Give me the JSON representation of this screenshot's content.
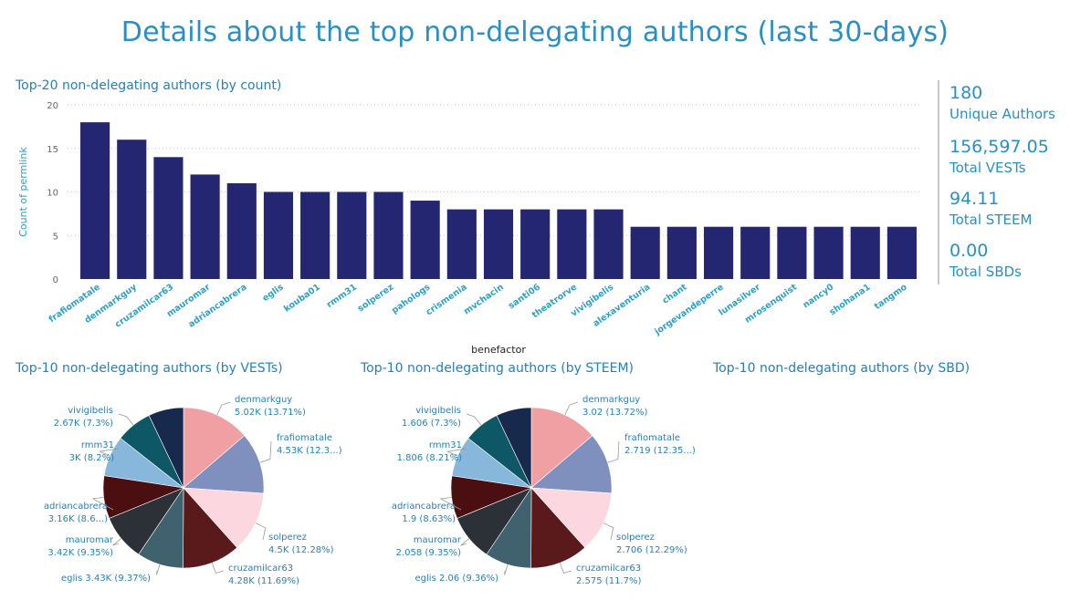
{
  "page_title": "Details about the top non-delegating authors (last 30-days)",
  "colors": {
    "title": "#2a8fc4",
    "bar": "#252672",
    "axis_label": "#2aa0c8"
  },
  "kpis": [
    {
      "value": "180",
      "label": "Unique Authors"
    },
    {
      "value": "156,597.05",
      "label": "Total VESTs"
    },
    {
      "value": "94.11",
      "label": "Total STEEM"
    },
    {
      "value": "0.00",
      "label": "Total SBDs"
    }
  ],
  "panels": {
    "vests_title": "Top-10 non-delegating authors (by VESTs)",
    "steem_title": "Top-10 non-delegating authors (by STEEM)",
    "sbd_title": "Top-10 non-delegating authors (by SBD)"
  },
  "chart_data": [
    {
      "type": "bar",
      "title": "Top-20 non-delegating authors (by count)",
      "xlabel": "benefactor",
      "ylabel": "Count of permlink",
      "ylim": [
        0,
        20
      ],
      "yticks": [
        0,
        5,
        10,
        15,
        20
      ],
      "grid": true,
      "categories": [
        "frafiomatale",
        "denmarkguy",
        "cruzamilcar63",
        "mauromar",
        "adriancabrera",
        "eglis",
        "kouba01",
        "rmm31",
        "solperez",
        "pahologs",
        "crismenia",
        "mvchacin",
        "santi06",
        "theatrorve",
        "vivigibelis",
        "alexaventuria",
        "chant",
        "jorgevandeperre",
        "lunasilver",
        "mrosenquist",
        "nancy0",
        "shohana1",
        "tangmo"
      ],
      "values": [
        18,
        16,
        14,
        12,
        11,
        10,
        10,
        10,
        10,
        9,
        8,
        8,
        8,
        8,
        8,
        6,
        6,
        6,
        6,
        6,
        6,
        6,
        6
      ]
    },
    {
      "type": "pie",
      "title": "Top-10 non-delegating authors (by VESTs)",
      "slices": [
        {
          "name": "denmarkguy",
          "value": 5.02,
          "label": "5.02K (13.71%)",
          "color": "#f0a0a2"
        },
        {
          "name": "frafiomatale",
          "value": 4.53,
          "label": "4.53K (12.3...)",
          "color": "#7f8fbe"
        },
        {
          "name": "solperez",
          "value": 4.5,
          "label": "4.5K (12.28%)",
          "color": "#fdd7e0"
        },
        {
          "name": "cruzamilcar63",
          "value": 4.28,
          "label": "4.28K (11.69%)",
          "color": "#5a1a1c"
        },
        {
          "name": "eglis",
          "value": 3.43,
          "label": "eglis 3.43K (9.37%)",
          "color": "#3f626e"
        },
        {
          "name": "mauromar",
          "value": 3.42,
          "label": "3.42K (9.35%)",
          "color": "#2b3136"
        },
        {
          "name": "adriancabrera",
          "value": 3.16,
          "label": "3.16K (8.6...)",
          "color": "#4b0f11"
        },
        {
          "name": "rmm31",
          "value": 3.0,
          "label": "3K (8.2%)",
          "color": "#87b8dc"
        },
        {
          "name": "vivigibelis",
          "value": 2.67,
          "label": "2.67K (7.3%)",
          "color": "#0d5766"
        },
        {
          "name": "",
          "value": 2.59,
          "label": "",
          "color": "#172a4e"
        }
      ]
    },
    {
      "type": "pie",
      "title": "Top-10 non-delegating authors (by STEEM)",
      "slices": [
        {
          "name": "denmarkguy",
          "value": 3.02,
          "label": "3.02 (13.72%)",
          "color": "#f0a0a2"
        },
        {
          "name": "frafiomatale",
          "value": 2.719,
          "label": "2.719 (12.35...)",
          "color": "#7f8fbe"
        },
        {
          "name": "solperez",
          "value": 2.706,
          "label": "2.706 (12.29%)",
          "color": "#fdd7e0"
        },
        {
          "name": "cruzamilcar63",
          "value": 2.575,
          "label": "2.575 (11.7%)",
          "color": "#5a1a1c"
        },
        {
          "name": "eglis",
          "value": 2.06,
          "label": "eglis 2.06 (9.36%)",
          "color": "#3f626e"
        },
        {
          "name": "mauromar",
          "value": 2.058,
          "label": "2.058 (9.35%)",
          "color": "#2b3136"
        },
        {
          "name": "adriancabrera",
          "value": 1.9,
          "label": "1.9 (8.63%)",
          "color": "#4b0f11"
        },
        {
          "name": "rmm31",
          "value": 1.806,
          "label": "1.806 (8.21%)",
          "color": "#87b8dc"
        },
        {
          "name": "vivigibelis",
          "value": 1.606,
          "label": "1.606 (7.3%)",
          "color": "#0d5766"
        },
        {
          "name": "",
          "value": 1.56,
          "label": "",
          "color": "#172a4e"
        }
      ]
    }
  ]
}
